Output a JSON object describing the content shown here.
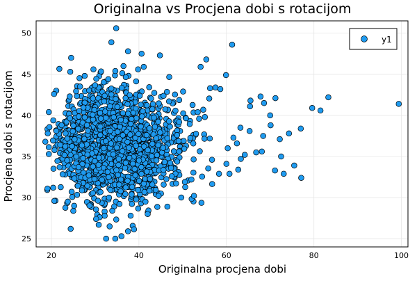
{
  "chart_data": {
    "type": "scatter",
    "title": "Originalna vs Procjena dobi s rotacijom",
    "xlabel": "Originalna procjena dobi",
    "ylabel": "Procjena dobi s rotacijom",
    "xlim": [
      16.5,
      101.5
    ],
    "ylim": [
      24.0,
      51.5
    ],
    "xticks": [
      20,
      40,
      60,
      80,
      100
    ],
    "yticks": [
      25,
      30,
      35,
      40,
      45,
      50
    ],
    "grid": true,
    "legend": "top-right",
    "series": [
      {
        "name": "y1",
        "color": "#1f9bf0",
        "stroke": "#000000",
        "points": [
          [
            34.8,
            50.6
          ],
          [
            33.7,
            48.9
          ],
          [
            61.3,
            48.6
          ],
          [
            37.5,
            47.8
          ],
          [
            24.5,
            47.0
          ],
          [
            40.6,
            47.5
          ],
          [
            44.8,
            47.3
          ],
          [
            55.4,
            46.8
          ],
          [
            41.1,
            45.9
          ],
          [
            29.6,
            45.6
          ],
          [
            54.1,
            45.9
          ],
          [
            24.3,
            45.3
          ],
          [
            59.9,
            44.9
          ],
          [
            34.6,
            45.4
          ],
          [
            33.0,
            44.4
          ],
          [
            39.8,
            45.6
          ],
          [
            27.6,
            44.8
          ],
          [
            21.1,
            43.0
          ],
          [
            20.6,
            42.6
          ],
          [
            50.1,
            42.9
          ],
          [
            57.5,
            43.4
          ],
          [
            58.6,
            43.2
          ],
          [
            65.5,
            41.8
          ],
          [
            65.4,
            41.1
          ],
          [
            67.8,
            42.3
          ],
          [
            68.6,
            41.5
          ],
          [
            71.2,
            42.1
          ],
          [
            79.6,
            40.9
          ],
          [
            81.5,
            40.6
          ],
          [
            83.3,
            42.2
          ],
          [
            99.4,
            41.4
          ],
          [
            70.0,
            40.0
          ],
          [
            70.1,
            38.8
          ],
          [
            72.2,
            37.1
          ],
          [
            74.3,
            37.8
          ],
          [
            77.0,
            38.4
          ],
          [
            63.2,
            38.5
          ],
          [
            65.3,
            38.1
          ],
          [
            68.4,
            37.5
          ],
          [
            61.6,
            37.3
          ],
          [
            60.3,
            36.0
          ],
          [
            62.4,
            36.6
          ],
          [
            66.8,
            35.5
          ],
          [
            68.1,
            35.6
          ],
          [
            64.2,
            35.2
          ],
          [
            72.5,
            35.0
          ],
          [
            75.5,
            33.9
          ],
          [
            77.1,
            32.4
          ],
          [
            71.1,
            33.3
          ],
          [
            73.1,
            32.9
          ],
          [
            63.3,
            34.7
          ],
          [
            60.0,
            34.1
          ],
          [
            62.7,
            33.4
          ],
          [
            58.3,
            32.9
          ],
          [
            56.7,
            34.6
          ],
          [
            60.7,
            32.9
          ],
          [
            52.0,
            32.2
          ],
          [
            50.5,
            31.9
          ],
          [
            47.5,
            32.6
          ],
          [
            19.1,
            31.1
          ],
          [
            20.4,
            31.2
          ],
          [
            18.6,
            36.8
          ],
          [
            19.4,
            35.3
          ],
          [
            24.4,
            26.2
          ],
          [
            30.8,
            26.7
          ],
          [
            32.5,
            25.0
          ],
          [
            36.0,
            25.3
          ],
          [
            34.6,
            25.0
          ],
          [
            37.5,
            25.9
          ],
          [
            33.9,
            28.4
          ],
          [
            30.2,
            27.4
          ],
          [
            33.3,
            26.5
          ],
          [
            38.1,
            27.8
          ],
          [
            41.5,
            29.5
          ],
          [
            44.5,
            30.2
          ],
          [
            46.5,
            28.9
          ],
          [
            42.0,
            28.0
          ]
        ]
      }
    ]
  }
}
